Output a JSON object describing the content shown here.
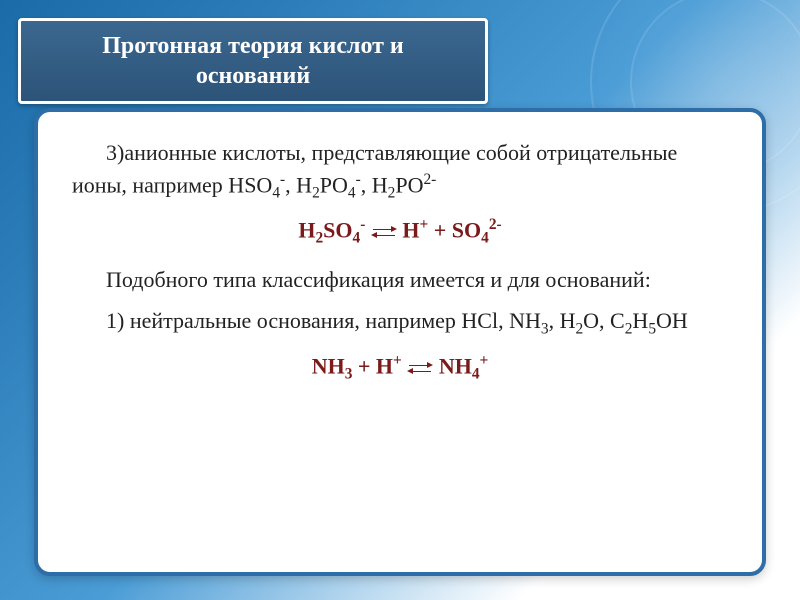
{
  "slide": {
    "type": "document-slide",
    "title_fontsize": 24,
    "body_fontsize": 22,
    "eq_fontsize": 22,
    "colors": {
      "background_gradient": [
        "#1a6ba8",
        "#2b7cb8",
        "#4a9cd6",
        "#ffffff"
      ],
      "title_bg": "#2d5378",
      "title_border": "#ffffff",
      "title_text": "#ffffff",
      "card_bg": "#ffffff",
      "card_border": "#2d6da8",
      "body_text": "#222222",
      "equation_text": "#7a1a1a"
    },
    "title": "Протонная теория кислот и оснований",
    "p1_lead": "3)анионные кислоты, представляющие собой отрицательные ионы, например HSO",
    "p1_anion1_sub": "4",
    "p1_anion1_sup": "-",
    "p1_sep1": ", H",
    "p1_anion2_sub1": "2",
    "p1_anion2_mid": "PO",
    "p1_anion2_sub2": "4",
    "p1_anion2_sup": "-",
    "p1_sep2": ", H",
    "p1_anion3_sub1": "2",
    "p1_anion3_mid": "PO",
    "p1_anion3_sup": "2-",
    "eq1_L": "H",
    "eq1_L_sub1": "2",
    "eq1_L_mid": "SO",
    "eq1_L_sub2": "4",
    "eq1_L_sup": "-",
    "eq1_R1": " H",
    "eq1_R1_sup": "+",
    "eq1_plus": " + SO",
    "eq1_R2_sub": "4",
    "eq1_R2_sup": "2-",
    "p2": "Подобного типа классификация имеется и для оснований:",
    "p3_lead": "1) нейтральные основания, например HCl, NH",
    "p3_s1": "3",
    "p3_c1": ", H",
    "p3_s2": "2",
    "p3_c2": "O, C",
    "p3_s3": "2",
    "p3_c3": "H",
    "p3_s4": "5",
    "p3_c4": "OH",
    "eq2_L": "NH",
    "eq2_L_sub": "3",
    "eq2_plus": " + H",
    "eq2_plus_sup": "+",
    "eq2_R": " NH",
    "eq2_R_sub": "4",
    "eq2_R_sup": "+"
  }
}
